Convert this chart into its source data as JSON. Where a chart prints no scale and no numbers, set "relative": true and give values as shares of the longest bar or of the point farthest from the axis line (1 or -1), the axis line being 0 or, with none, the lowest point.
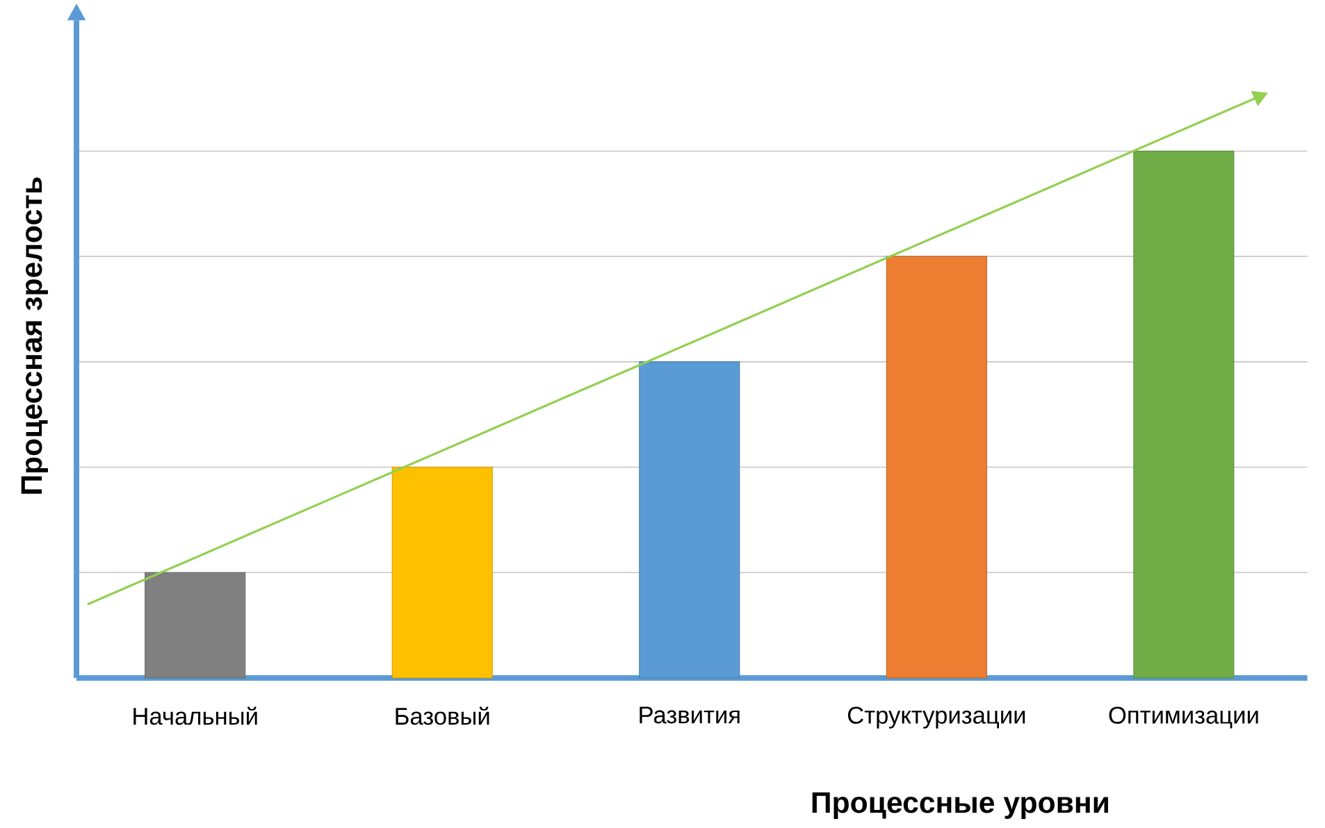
{
  "chart_data": {
    "type": "bar",
    "relative": true,
    "grid": "y",
    "xlabel": "Процессные уровни",
    "ylabel": "Процессная зрелость",
    "categories": [
      "Начальный",
      "Базовый",
      "Развития",
      "Структуризации",
      "Оптимизации"
    ],
    "series": [
      {
        "colors": [
          "#808080",
          "#ffc000",
          "#5b9bd5",
          "#ed7d31",
          "#70ad47"
        ],
        "values": [
          0.2,
          0.4,
          0.6,
          0.8,
          1.0
        ]
      }
    ]
  }
}
